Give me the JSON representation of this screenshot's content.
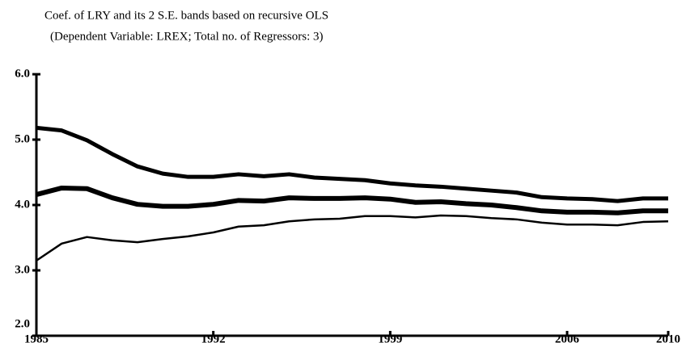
{
  "chart_data": {
    "type": "line",
    "title": "Coef. of LRY and its 2 S.E. bands based on recursive OLS",
    "subtitle": "(Dependent Variable: LREX; Total no. of Regressors: 3)",
    "x": [
      1985,
      1986,
      1987,
      1988,
      1989,
      1990,
      1991,
      1992,
      1993,
      1994,
      1995,
      1996,
      1997,
      1998,
      1999,
      2000,
      2001,
      2002,
      2003,
      2004,
      2005,
      2006,
      2007,
      2008,
      2009,
      2010
    ],
    "series": [
      {
        "color": "#000000",
        "values": [
          5.18,
          5.14,
          4.99,
          4.78,
          4.59,
          4.48,
          4.43,
          4.43,
          4.47,
          4.44,
          4.47,
          4.42,
          4.4,
          4.38,
          4.33,
          4.3,
          4.28,
          4.25,
          4.22,
          4.19,
          4.12,
          4.1,
          4.09,
          4.06,
          4.1,
          4.1
        ]
      },
      {
        "color": "#000000",
        "values": [
          4.16,
          4.26,
          4.25,
          4.11,
          4.01,
          3.98,
          3.98,
          4.01,
          4.07,
          4.06,
          4.11,
          4.1,
          4.1,
          4.11,
          4.09,
          4.04,
          4.05,
          4.02,
          4.0,
          3.96,
          3.91,
          3.89,
          3.89,
          3.88,
          3.91,
          3.91
        ]
      },
      {
        "color": "#000000",
        "values": [
          3.15,
          3.41,
          3.51,
          3.46,
          3.43,
          3.48,
          3.52,
          3.58,
          3.67,
          3.69,
          3.75,
          3.78,
          3.79,
          3.83,
          3.83,
          3.81,
          3.84,
          3.83,
          3.8,
          3.78,
          3.73,
          3.7,
          3.7,
          3.69,
          3.74,
          3.75
        ]
      }
    ],
    "xlim": [
      1985,
      2010
    ],
    "xticks": [
      1985,
      1992,
      1999,
      2006,
      2010
    ],
    "ylim": [
      2,
      6
    ],
    "yticks": [
      {
        "value": 2,
        "label": "2.0"
      },
      {
        "value": 3,
        "label": "3.0"
      },
      {
        "value": 4,
        "label": "4.0"
      },
      {
        "value": 5,
        "label": "5.0"
      },
      {
        "value": 6,
        "label": "6.0"
      }
    ]
  }
}
